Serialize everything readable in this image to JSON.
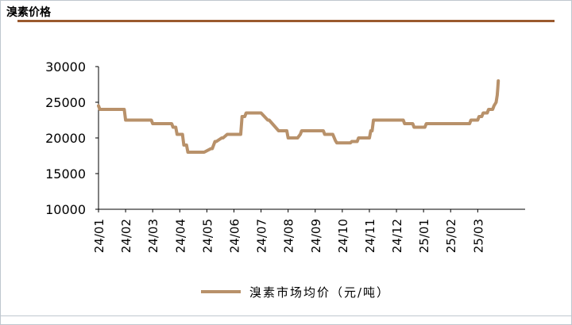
{
  "header": {
    "title": "溴素价格"
  },
  "chart_data": {
    "type": "line",
    "title": "",
    "xlabel": "",
    "ylabel": "",
    "ylim": [
      10000,
      30000
    ],
    "yticks": [
      10000,
      15000,
      20000,
      25000,
      30000
    ],
    "yticklabels": [
      "10000",
      "15000",
      "20000",
      "25000",
      "30000"
    ],
    "xlim": [
      0,
      15.75
    ],
    "xticks": [
      0,
      1,
      2,
      3,
      4,
      5,
      6,
      7,
      8,
      9,
      10,
      11,
      12,
      13,
      14
    ],
    "xticklabels": [
      "24/01",
      "24/02",
      "24/03",
      "24/04",
      "24/05",
      "24/06",
      "24/07",
      "24/08",
      "24/09",
      "24/10",
      "24/11",
      "24/12",
      "25/01",
      "25/02",
      "25/03"
    ],
    "legend": {
      "position": "bottom"
    },
    "grid": false,
    "colors": {
      "series": "#b8916a",
      "title_rule": "#9a5a2e"
    },
    "series": [
      {
        "name": "溴素市场均价（元/吨）",
        "x": [
          0,
          0.05,
          0.6,
          0.95,
          1.0,
          1.95,
          2.0,
          2.25,
          2.3,
          2.7,
          2.75,
          2.85,
          2.9,
          3.1,
          3.15,
          3.25,
          3.3,
          3.5,
          3.55,
          3.9,
          4.15,
          4.2,
          4.3,
          4.35,
          4.55,
          4.6,
          4.75,
          4.8,
          5.2,
          5.25,
          5.3,
          5.35,
          5.4,
          5.45,
          5.95,
          6.0,
          6.25,
          6.3,
          6.65,
          6.7,
          6.95,
          7.0,
          7.3,
          7.35,
          7.45,
          7.5,
          8.3,
          8.35,
          8.6,
          8.65,
          8.75,
          8.8,
          9.0,
          9.05,
          9.3,
          9.35,
          9.55,
          9.6,
          9.75,
          9.8,
          10.0,
          10.05,
          10.1,
          10.15,
          10.35,
          10.4,
          11.25,
          11.3,
          11.45,
          11.5,
          11.6,
          11.65,
          12.05,
          12.1,
          13.7,
          13.75,
          14.0,
          14.05,
          14.15,
          14.2,
          14.35,
          14.4,
          14.55,
          14.6,
          14.68,
          14.72,
          14.74,
          14.76
        ],
        "y": [
          24500,
          24000,
          24000,
          24000,
          22500,
          22500,
          22000,
          22000,
          22000,
          22000,
          21500,
          21500,
          20500,
          20500,
          19000,
          19000,
          18000,
          18000,
          18000,
          18000,
          18500,
          18500,
          19500,
          19500,
          20000,
          20000,
          20500,
          20500,
          20500,
          20500,
          23000,
          23000,
          23000,
          23500,
          23500,
          23500,
          22500,
          22500,
          21000,
          21000,
          21000,
          20000,
          20000,
          20000,
          20500,
          21000,
          21000,
          20500,
          20500,
          20500,
          19600,
          19300,
          19300,
          19300,
          19300,
          19500,
          19500,
          20000,
          20000,
          20000,
          20000,
          21000,
          21000,
          22500,
          22500,
          22500,
          22500,
          22000,
          22000,
          22000,
          22000,
          21500,
          21500,
          22000,
          22000,
          22500,
          22500,
          23000,
          23000,
          23500,
          23500,
          24000,
          24000,
          24500,
          25000,
          26000,
          27000,
          28000
        ]
      }
    ]
  }
}
